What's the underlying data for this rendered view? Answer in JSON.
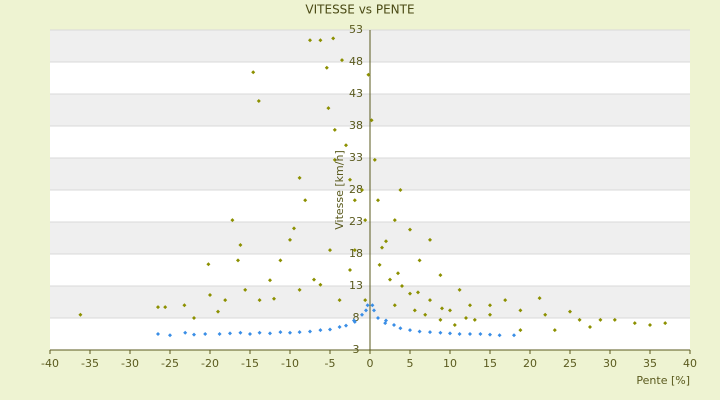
{
  "chart_data": {
    "type": "scatter",
    "title": "VITESSE vs PENTE",
    "x_label": "Pente [%]",
    "y_label": "Vitesse [km/h]",
    "xlim": [
      -40,
      40
    ],
    "ylim": [
      3,
      53
    ],
    "xticks": [
      -40,
      -35,
      -30,
      -25,
      -20,
      -15,
      -10,
      -5,
      0,
      5,
      10,
      15,
      20,
      25,
      30,
      35,
      40
    ],
    "yticks": [
      3,
      8,
      13,
      18,
      23,
      28,
      33,
      38,
      43,
      48,
      53
    ],
    "grid": true,
    "series": [
      {
        "color": "#8c9000",
        "x": [
          -36.2,
          -26.5,
          -25.6,
          -23.2,
          -14.6,
          -13.9,
          -17.2,
          -20.2,
          -16.2,
          -16.5,
          -15.6,
          -8.8,
          -7.5,
          -6.2,
          -4.6,
          -5.4,
          -3.5,
          -0.2,
          -5.2,
          -4.4,
          -4.4,
          -8.1,
          -10,
          -11.2,
          -12.5,
          -13.8,
          -18.1,
          -20,
          -2.5,
          -1.9,
          -1,
          -0.6,
          0.6,
          0.2,
          1,
          3.8,
          3.1,
          5,
          7.5,
          6.2,
          8.8,
          1.2,
          2.5,
          5,
          7.5,
          10,
          12.5,
          15,
          16.9,
          18.8,
          21.2,
          21.9,
          25,
          26.2,
          28.8,
          30.6,
          33.1,
          35,
          36.9,
          18.8,
          23.1,
          27.5,
          -8.8,
          -6.2,
          -3.8,
          -2.5,
          -5,
          -1.9,
          -0.6,
          11.2,
          13.1,
          15,
          5.6,
          3.1,
          6.9,
          8.8,
          10.6,
          -9.5,
          -3,
          2,
          4,
          6,
          9,
          12,
          -22,
          -19,
          -12,
          -7,
          1.5,
          3.5
        ],
        "y": [
          8.5,
          9.7,
          9.7,
          10,
          46.4,
          41.9,
          23.3,
          16.4,
          19.4,
          17,
          12.4,
          29.9,
          51.4,
          51.4,
          51.7,
          47.1,
          48.3,
          46,
          40.8,
          37.4,
          32.7,
          26.4,
          20.2,
          17,
          13.9,
          10.8,
          10.8,
          11.6,
          29.6,
          26.4,
          28,
          23.3,
          32.7,
          38.9,
          26.4,
          28,
          23.3,
          21.8,
          20.2,
          17,
          14.7,
          16.3,
          14,
          11.8,
          10.8,
          9.2,
          10,
          10,
          10.8,
          9.2,
          11.1,
          8.5,
          9,
          7.7,
          7.7,
          7.7,
          7.2,
          6.9,
          7.2,
          6.1,
          6.1,
          6.6,
          12.4,
          13.2,
          10.8,
          15.5,
          18.6,
          18.6,
          10.8,
          12.4,
          7.7,
          8.5,
          9.2,
          10,
          8.5,
          7.7,
          6.9,
          22,
          35,
          20,
          13,
          12,
          9.5,
          8,
          8,
          9,
          11,
          14,
          19,
          15
        ]
      },
      {
        "color": "#3a8ee6",
        "x": [
          -26.5,
          -25,
          -23.1,
          -20.6,
          -18.8,
          -16.2,
          -13.8,
          -11.2,
          -8.8,
          -6.2,
          -3.8,
          -1.9,
          -1,
          -0.5,
          0.5,
          1,
          1.9,
          3.8,
          6.2,
          8.8,
          11.2,
          13.8,
          16.2,
          18,
          -22,
          -17.5,
          -15,
          -12.5,
          -10,
          -7.5,
          -5,
          -3,
          -2,
          2,
          3,
          5,
          7.5,
          10,
          12.5,
          15,
          -0.3,
          0.3
        ],
        "y": [
          5.5,
          5.3,
          5.7,
          5.5,
          5.5,
          5.7,
          5.7,
          5.8,
          5.8,
          6.1,
          6.6,
          7.4,
          8.5,
          9.2,
          9.2,
          8,
          7.2,
          6.4,
          5.9,
          5.7,
          5.5,
          5.5,
          5.3,
          5.3,
          5.4,
          5.6,
          5.5,
          5.6,
          5.7,
          5.9,
          6.2,
          6.8,
          7.6,
          7.6,
          6.9,
          6.1,
          5.8,
          5.6,
          5.5,
          5.4,
          10,
          10
        ]
      }
    ]
  }
}
